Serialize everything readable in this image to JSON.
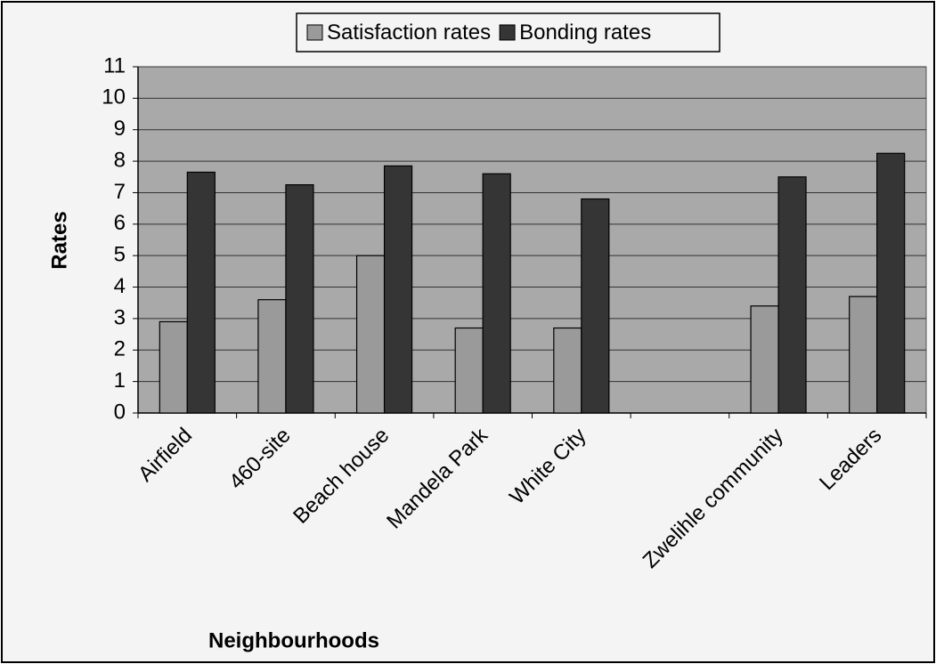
{
  "chart_data": {
    "type": "bar",
    "categories": [
      "Airfield",
      "460-site",
      "Beach house",
      "Mandela Park",
      "White City",
      null,
      "Zwelihle community",
      "Leaders"
    ],
    "series": [
      {
        "name": "Satisfaction rates",
        "color": "#9a9a9a",
        "values": [
          2.9,
          3.6,
          5.0,
          2.7,
          2.7,
          null,
          3.4,
          3.7
        ]
      },
      {
        "name": "Bonding rates",
        "color": "#353535",
        "values": [
          7.65,
          7.25,
          7.85,
          7.6,
          6.8,
          null,
          7.5,
          8.25
        ]
      }
    ],
    "y_label": "Rates",
    "x_label": "Neighbourhoods",
    "ylim": [
      0,
      11
    ],
    "yticks": [
      0,
      1,
      2,
      3,
      4,
      5,
      6,
      7,
      8,
      9,
      10,
      11
    ],
    "grid": true,
    "legend": "top"
  }
}
